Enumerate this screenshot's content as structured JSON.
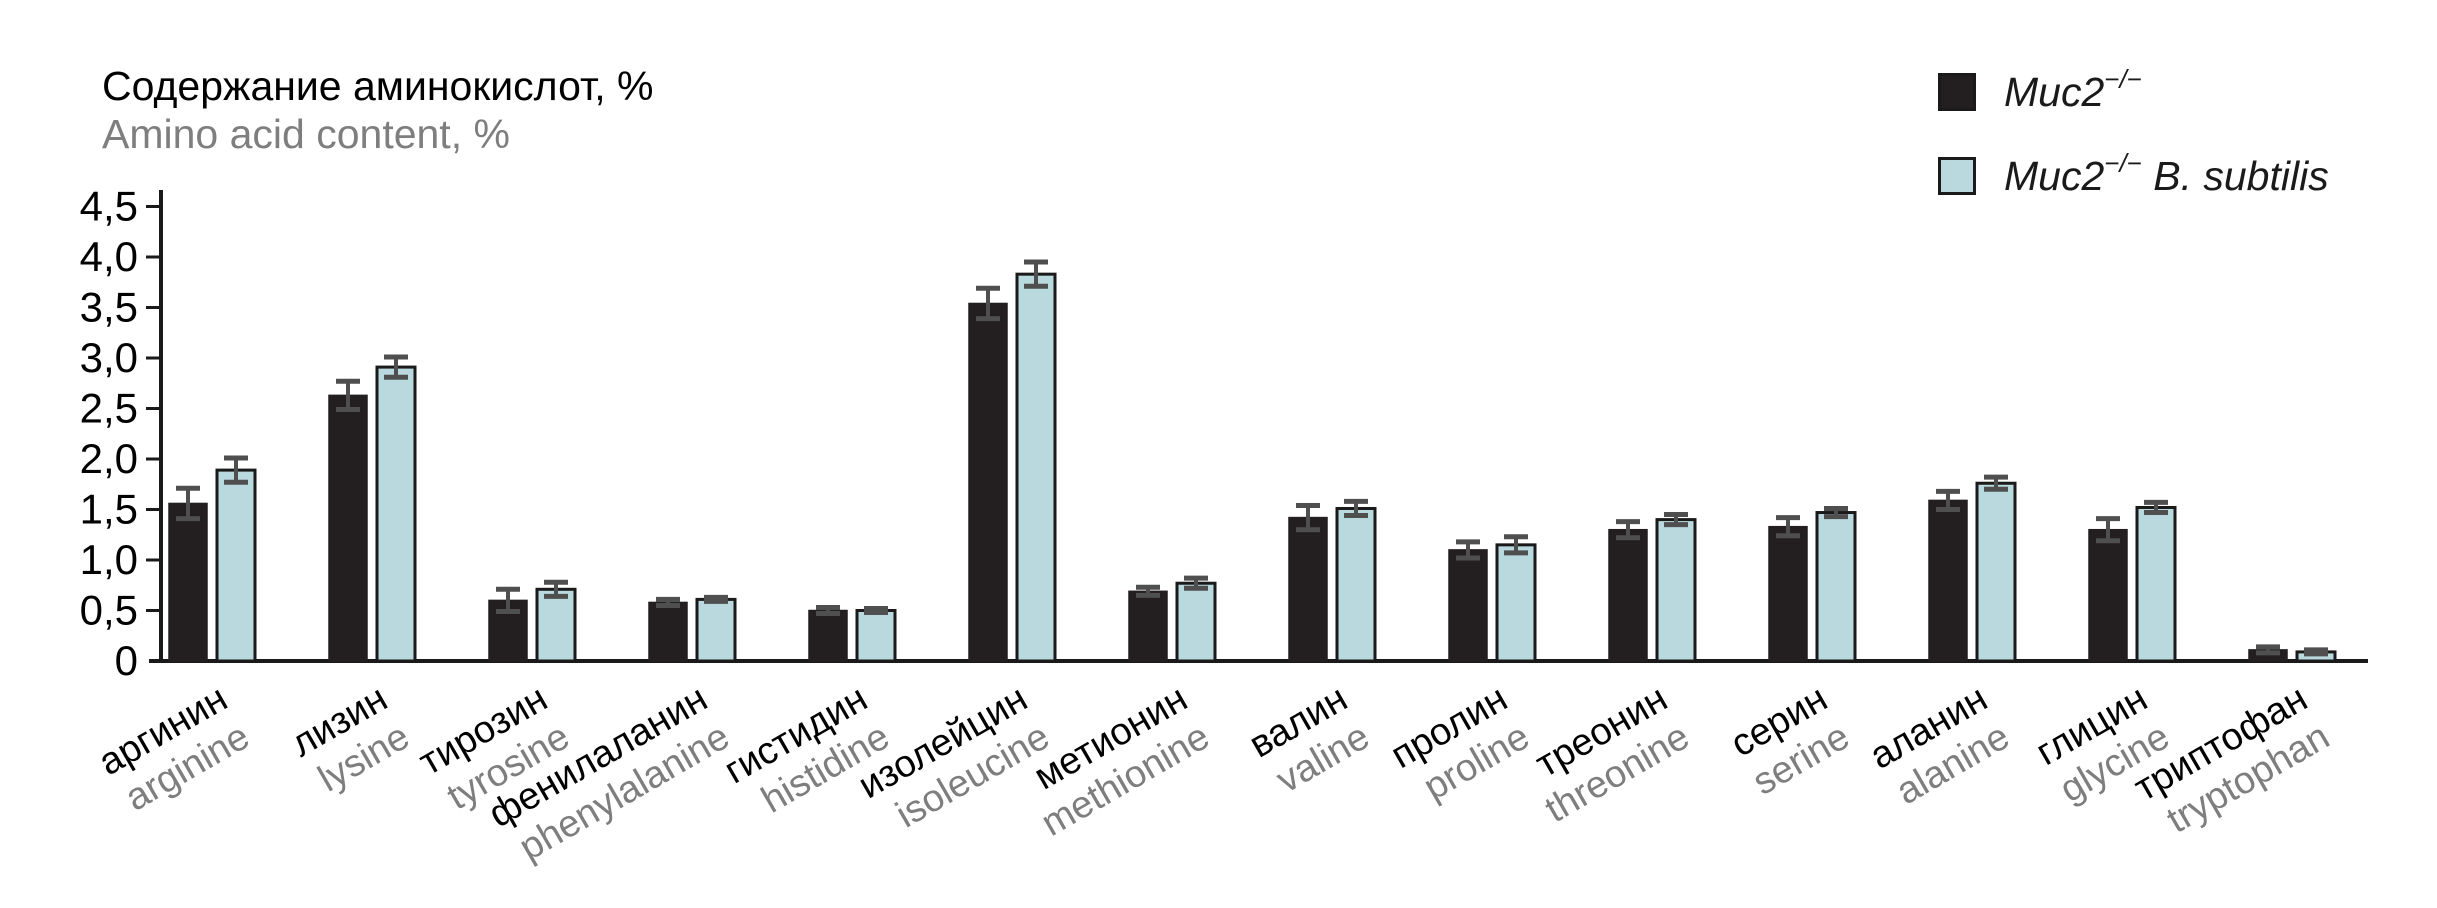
{
  "title": {
    "ru": "Содержание аминокислот, %",
    "en": "Amino acid content, %"
  },
  "legend": {
    "items": [
      {
        "prefix": "Muc2",
        "sup": "−/−",
        "suffix": ""
      },
      {
        "prefix": "Muc2",
        "sup": "−/−",
        "suffix": " B. subtilis"
      }
    ]
  },
  "chart_data": {
    "type": "bar",
    "title": "Содержание аминокислот, % / Amino acid content, %",
    "xlabel": "",
    "ylabel": "Amino acid content, %",
    "ylim": [
      0,
      4.5
    ],
    "ytick_step": 0.5,
    "yticks": [
      0,
      0.5,
      1.0,
      1.5,
      2.0,
      2.5,
      3.0,
      3.5,
      4.0,
      4.5
    ],
    "ytick_labels": [
      "0",
      "0,5",
      "1,0",
      "1,5",
      "2,0",
      "2,5",
      "3,0",
      "3,5",
      "4,0",
      "4,5"
    ],
    "grid": false,
    "legend_position": "top-right",
    "error_bars": true,
    "categories": [
      {
        "ru": "аргинин",
        "en": "arginine"
      },
      {
        "ru": "лизин",
        "en": "lysine"
      },
      {
        "ru": "тирозин",
        "en": "tyrosine"
      },
      {
        "ru": "фенилаланин",
        "en": "phenylalanine"
      },
      {
        "ru": "гистидин",
        "en": "histidine"
      },
      {
        "ru": "изолейцин",
        "en": "isoleucine"
      },
      {
        "ru": "метионин",
        "en": "methionine"
      },
      {
        "ru": "валин",
        "en": "valine"
      },
      {
        "ru": "пролин",
        "en": "proline"
      },
      {
        "ru": "треонин",
        "en": "threonine"
      },
      {
        "ru": "серин",
        "en": "serine"
      },
      {
        "ru": "аланин",
        "en": "alanine"
      },
      {
        "ru": "глицин",
        "en": "glycine"
      },
      {
        "ru": "триптофан",
        "en": "tryptophan"
      }
    ],
    "series": [
      {
        "name": "Muc2−/−",
        "color": "#231f20",
        "values": [
          1.56,
          2.63,
          0.6,
          0.58,
          0.5,
          3.54,
          0.69,
          1.42,
          1.1,
          1.3,
          1.33,
          1.59,
          1.3,
          0.11
        ],
        "errors": [
          0.15,
          0.14,
          0.11,
          0.03,
          0.03,
          0.15,
          0.04,
          0.12,
          0.08,
          0.08,
          0.09,
          0.09,
          0.11,
          0.03
        ]
      },
      {
        "name": "Muc2−/− B. subtilis",
        "color": "#b9d9df",
        "values": [
          1.89,
          2.91,
          0.71,
          0.61,
          0.5,
          3.83,
          0.77,
          1.51,
          1.15,
          1.4,
          1.47,
          1.76,
          1.52,
          0.09
        ],
        "errors": [
          0.12,
          0.1,
          0.07,
          0.02,
          0.02,
          0.12,
          0.05,
          0.07,
          0.08,
          0.05,
          0.04,
          0.06,
          0.05,
          0.02
        ]
      }
    ]
  },
  "colors": {
    "bar_black": "#231f20",
    "bar_blue": "#b9d9df",
    "bar_border": "#1a1a1a",
    "axis": "#1a1a1a",
    "error_bar": "#4f4f4f",
    "text_primary": "#000000",
    "text_secondary": "#7e7e7e"
  }
}
